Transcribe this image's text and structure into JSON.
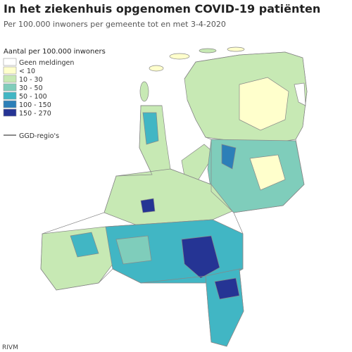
{
  "header": {
    "title": "In het ziekenhuis opgenomen COVID-19 patiënten",
    "subtitle": "Per 100.000 inwoners per gemeente tot en met 3-4-2020"
  },
  "legend": {
    "title": "Aantal per 100.000 inwoners",
    "items": [
      {
        "label": "Geen meldingen",
        "color": "#ffffff"
      },
      {
        "label": "< 10",
        "color": "#ffffcc"
      },
      {
        "label": "10 - 30",
        "color": "#c7e9b4"
      },
      {
        "label": "30 - 50",
        "color": "#7fcdbb"
      },
      {
        "label": "50 - 100",
        "color": "#41b6c4"
      },
      {
        "label": "100 - 150",
        "color": "#2c7fb8"
      },
      {
        "label": "150 - 270",
        "color": "#253494"
      }
    ],
    "line_label": "GGD-regio's"
  },
  "source": "RIVM"
}
